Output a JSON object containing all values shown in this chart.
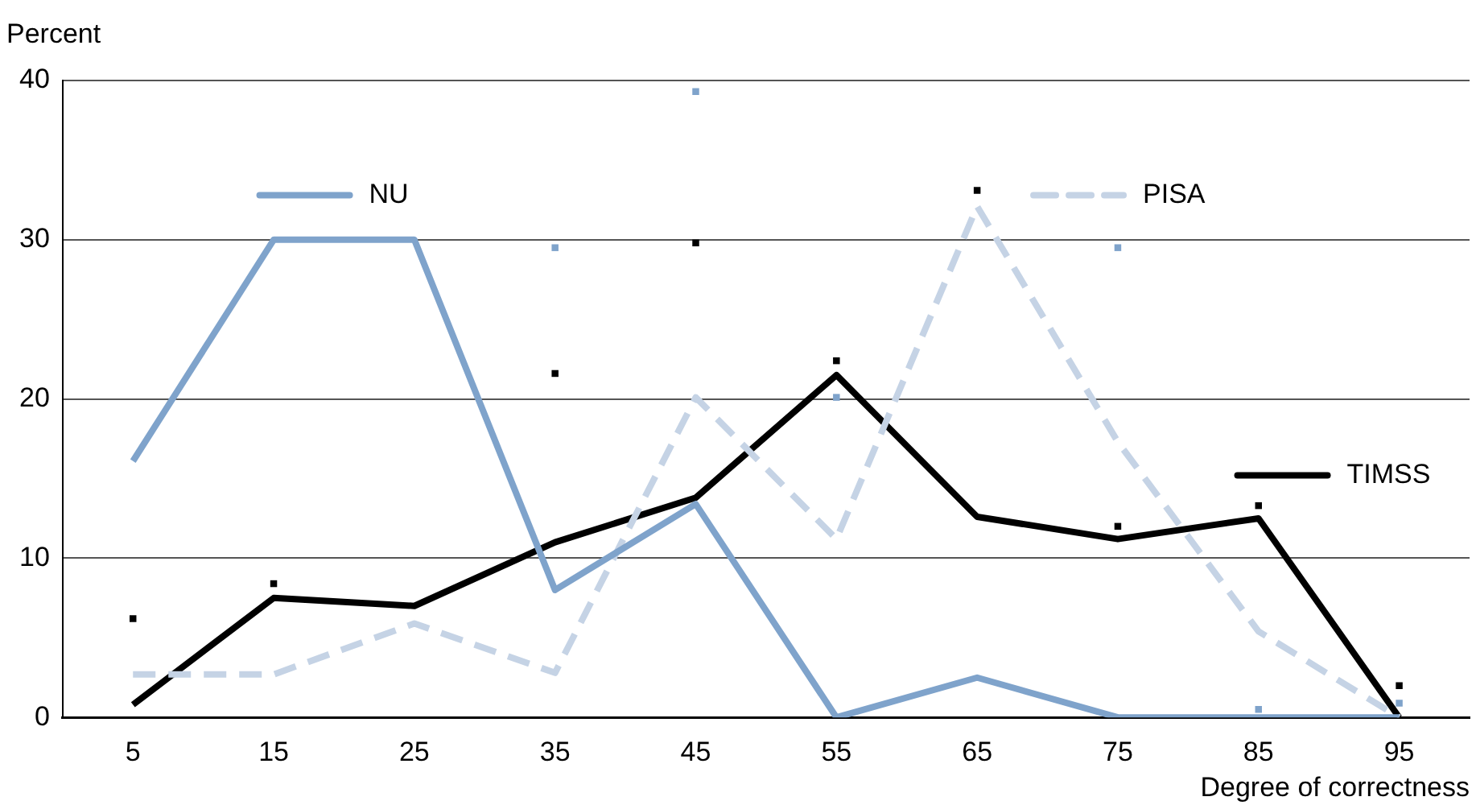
{
  "chart_data": {
    "type": "line",
    "ylabel": "Percent",
    "xlabel": "Degree of correctness",
    "categories": [
      "5",
      "15",
      "25",
      "35",
      "45",
      "55",
      "65",
      "75",
      "85",
      "95"
    ],
    "ylim": [
      0,
      40
    ],
    "yticks": [
      0,
      10,
      20,
      30,
      40
    ],
    "grid": "y",
    "legend": "top",
    "marker": "none",
    "series": [
      {
        "name": "NU",
        "color": "#7fa3cb",
        "values": [
          16.1,
          30,
          30,
          8,
          13.4,
          0,
          2.5,
          0,
          0,
          0
        ]
      },
      {
        "name": "PISA",
        "color": "#c5d3e5",
        "line_style": "dashed",
        "values": [
          2.7,
          2.7,
          5.9,
          2.8,
          20.1,
          11.2,
          32.1,
          17.3,
          5.4,
          0
        ]
      },
      {
        "name": "TIMSS",
        "color": "#000000",
        "values": [
          0.8,
          7.5,
          7.0,
          11.0,
          13.8,
          21.5,
          12.6,
          11.2,
          12.5,
          0
        ]
      },
      {
        "type": "scatter",
        "marker": "square",
        "color": "#000000",
        "values": [
          6.2,
          8.4,
          null,
          21.6,
          29.8,
          22.4,
          33.1,
          12.0,
          13.3,
          2.0
        ]
      },
      {
        "type": "scatter",
        "marker": "square",
        "color": "#7fa3cb",
        "values": [
          null,
          null,
          null,
          29.5,
          39.3,
          20.1,
          null,
          29.5,
          0.5,
          0.9
        ]
      }
    ]
  }
}
